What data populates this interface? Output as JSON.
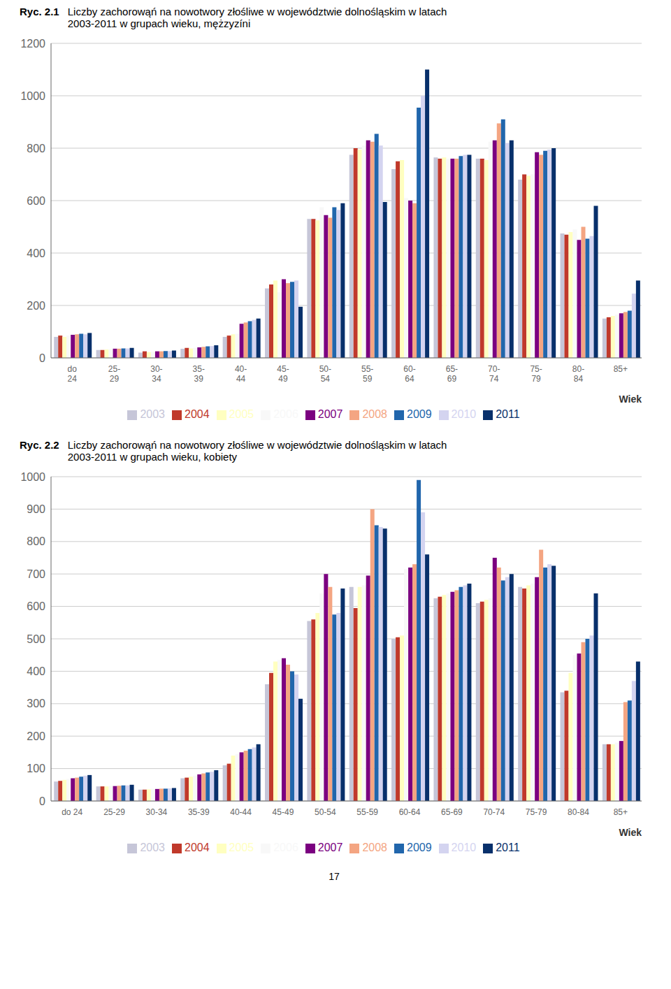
{
  "chart_data": [
    {
      "type": "bar",
      "title": "Ryc. 2.1",
      "subtitle": "Liczby zachorowąń na nowotwory złośliwe w województwie dolnośląskim w latach\n2003-2011 w grupach wieku, mężzyzíni",
      "xlabel": "Wiek",
      "categories": [
        "do\n24",
        "25-\n29",
        "30-\n34",
        "35-\n39",
        "40-\n44",
        "45-\n49",
        "50-\n54",
        "55-\n59",
        "60-\n64",
        "65-\n69",
        "70-\n74",
        "75-\n79",
        "80-\n84",
        "85+"
      ],
      "series": [
        {
          "name": "2003",
          "color": "#c6c6d8",
          "values": [
            80,
            30,
            20,
            35,
            80,
            265,
            530,
            775,
            720,
            765,
            760,
            680,
            475,
            150
          ]
        },
        {
          "name": "2004",
          "color": "#c0392b",
          "values": [
            85,
            30,
            25,
            38,
            85,
            280,
            530,
            800,
            750,
            760,
            760,
            700,
            470,
            155
          ]
        },
        {
          "name": "2005",
          "color": "#ffffc0",
          "values": [
            80,
            32,
            22,
            36,
            90,
            295,
            525,
            795,
            755,
            765,
            755,
            695,
            480,
            160
          ]
        },
        {
          "name": "2006",
          "color": "#f8f8f8",
          "values": [
            85,
            33,
            23,
            38,
            92,
            250,
            575,
            810,
            610,
            760,
            825,
            700,
            490,
            165
          ]
        },
        {
          "name": "2007",
          "color": "#7b0080",
          "values": [
            88,
            35,
            25,
            40,
            130,
            300,
            545,
            830,
            600,
            760,
            830,
            785,
            450,
            170
          ]
        },
        {
          "name": "2008",
          "color": "#f4a582",
          "values": [
            90,
            35,
            25,
            42,
            135,
            285,
            535,
            825,
            590,
            760,
            895,
            775,
            500,
            175
          ]
        },
        {
          "name": "2009",
          "color": "#2166ac",
          "values": [
            92,
            36,
            26,
            44,
            140,
            290,
            575,
            855,
            955,
            770,
            910,
            790,
            455,
            180
          ]
        },
        {
          "name": "2010",
          "color": "#d4d4f0",
          "values": [
            90,
            36,
            26,
            45,
            145,
            295,
            565,
            810,
            1000,
            775,
            820,
            795,
            465,
            245
          ]
        },
        {
          "name": "2011",
          "color": "#08306b",
          "values": [
            95,
            38,
            28,
            48,
            150,
            195,
            590,
            595,
            1100,
            775,
            830,
            800,
            580,
            295
          ]
        }
      ],
      "ylim": [
        0,
        1200
      ],
      "yticks": [
        0,
        200,
        400,
        600,
        800,
        1000,
        1200
      ],
      "grid": true,
      "legend": "bottom"
    },
    {
      "type": "bar",
      "title": "Ryc. 2.2",
      "subtitle": "Liczby zachorowąń na nowotwory złośliwe w województwie dolnośląskim w latach\n2003-2011 w grupach wieku, kobiety",
      "xlabel": "Wiek",
      "categories": [
        "do 24",
        "25-29",
        "30-34",
        "35-39",
        "40-44",
        "45-49",
        "50-54",
        "55-59",
        "60-64",
        "65-69",
        "70-74",
        "75-79",
        "80-84",
        "85+"
      ],
      "series": [
        {
          "name": "2003",
          "color": "#c6c6d8",
          "values": [
            60,
            45,
            35,
            70,
            110,
            360,
            555,
            660,
            500,
            625,
            610,
            660,
            335,
            175
          ]
        },
        {
          "name": "2004",
          "color": "#c0392b",
          "values": [
            62,
            45,
            35,
            72,
            115,
            395,
            560,
            595,
            505,
            630,
            615,
            655,
            340,
            175
          ]
        },
        {
          "name": "2005",
          "color": "#ffffc0",
          "values": [
            65,
            45,
            36,
            75,
            140,
            430,
            580,
            660,
            510,
            635,
            620,
            665,
            395,
            175
          ]
        },
        {
          "name": "2006",
          "color": "#f8f8f8",
          "values": [
            68,
            46,
            37,
            78,
            145,
            435,
            640,
            665,
            715,
            640,
            625,
            670,
            450,
            180
          ]
        },
        {
          "name": "2007",
          "color": "#7b0080",
          "values": [
            70,
            46,
            37,
            82,
            150,
            440,
            700,
            695,
            720,
            645,
            750,
            690,
            455,
            185
          ]
        },
        {
          "name": "2008",
          "color": "#f4a582",
          "values": [
            72,
            47,
            38,
            85,
            155,
            420,
            660,
            900,
            730,
            650,
            720,
            775,
            490,
            305
          ]
        },
        {
          "name": "2009",
          "color": "#2166ac",
          "values": [
            75,
            48,
            38,
            88,
            160,
            400,
            575,
            850,
            990,
            660,
            680,
            720,
            500,
            310
          ]
        },
        {
          "name": "2010",
          "color": "#d4d4f0",
          "values": [
            78,
            48,
            39,
            90,
            165,
            390,
            580,
            845,
            890,
            665,
            690,
            730,
            510,
            370
          ]
        },
        {
          "name": "2011",
          "color": "#08306b",
          "values": [
            80,
            50,
            40,
            95,
            175,
            315,
            655,
            840,
            760,
            670,
            700,
            725,
            640,
            430
          ]
        }
      ],
      "ylim": [
        0,
        1000
      ],
      "yticks": [
        0,
        100,
        200,
        300,
        400,
        500,
        600,
        700,
        800,
        900,
        1000
      ],
      "grid": true,
      "legend": "bottom",
      "annotations": [
        "17"
      ]
    }
  ]
}
